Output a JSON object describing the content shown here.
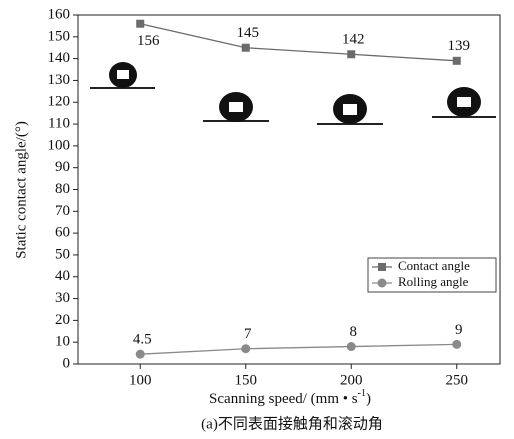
{
  "chart_data": {
    "type": "line",
    "caption": "(a)不同表面接触角和滚动角",
    "y_label": "Static contact angle/(°)",
    "x_label": {
      "text": "Scanning speed/ (mm • s",
      "superscript": "-1",
      "suffix": ")"
    },
    "x": [
      100,
      150,
      200,
      250
    ],
    "xlim": [
      70.5,
      270.5
    ],
    "xticks": [
      100,
      150,
      200,
      250
    ],
    "ylim": [
      0,
      160
    ],
    "yticks": [
      0,
      10,
      20,
      30,
      40,
      50,
      60,
      70,
      80,
      90,
      100,
      110,
      120,
      130,
      140,
      150,
      160
    ],
    "legend": "lower right",
    "series": [
      {
        "name": "Contact angle",
        "color": "#6b6b6b",
        "marker": "square",
        "values": [
          156,
          145,
          142,
          139
        ]
      },
      {
        "name": "Rolling angle",
        "color": "#8a8a8a",
        "marker": "circle",
        "values": [
          4.5,
          7,
          8,
          9
        ]
      }
    ]
  }
}
